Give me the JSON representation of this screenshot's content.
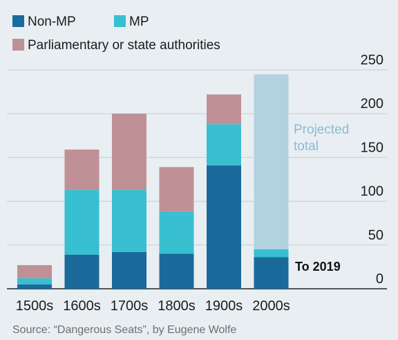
{
  "chart_data": {
    "type": "bar",
    "stacked": true,
    "categories": [
      "1500s",
      "1600s",
      "1700s",
      "1800s",
      "1900s",
      "2000s"
    ],
    "series": [
      {
        "name": "Non-MP",
        "color": "#1a6a9c",
        "values": [
          5,
          39,
          42,
          40,
          141,
          36
        ]
      },
      {
        "name": "MP",
        "color": "#38bfd0",
        "values": [
          7,
          74,
          71,
          48,
          47,
          9
        ]
      },
      {
        "name": "Parliamentary or state authorities",
        "color": "#bf9096",
        "values": [
          15,
          46,
          87,
          51,
          34,
          0
        ]
      }
    ],
    "projected": {
      "label_line1": "Projected",
      "label_line2": "total",
      "category": "2000s",
      "value": 245,
      "color": "#b3d2e0"
    },
    "annotation": "To 2019",
    "yticks": [
      "250",
      "200",
      "150",
      "100",
      "50",
      "0"
    ],
    "ylim": [
      0,
      250
    ],
    "grid": true,
    "axis_side": "right",
    "legend_position": "top-left"
  },
  "source": "Source: “Dangerous Seats”, by Eugene Wolfe"
}
